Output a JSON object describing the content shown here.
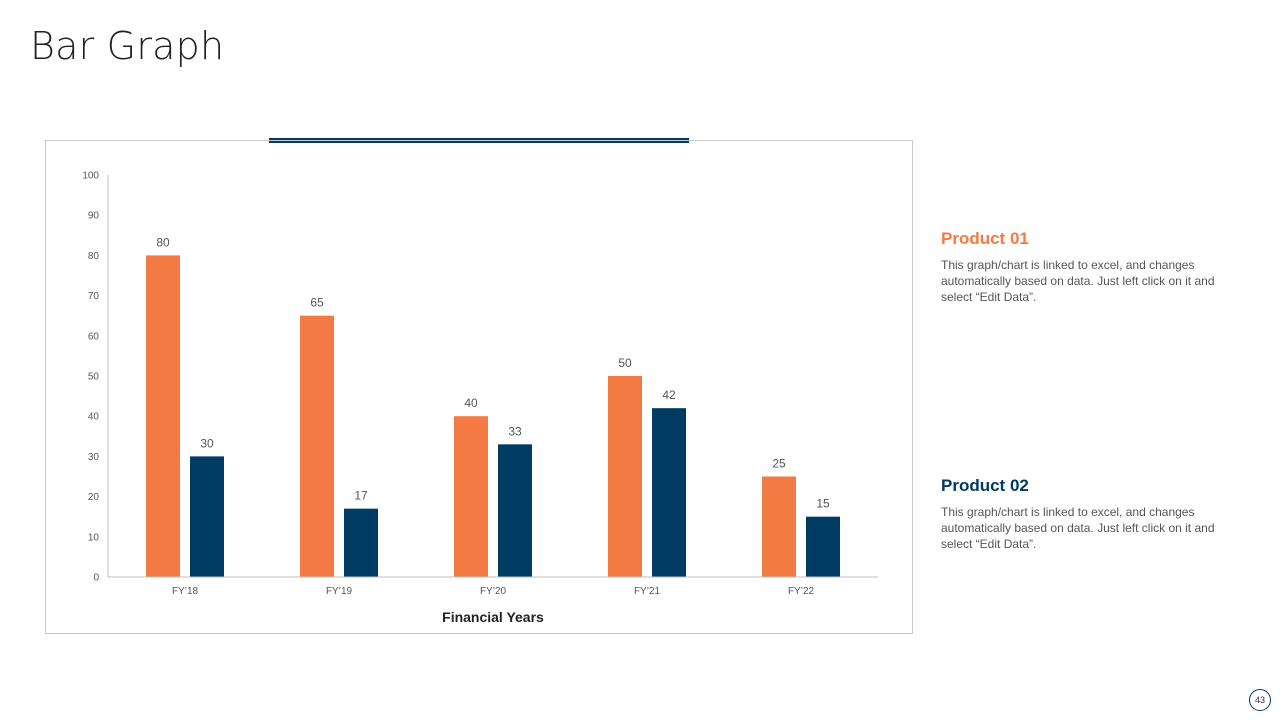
{
  "page": {
    "title": "Bar Graph",
    "page_number": "43"
  },
  "colors": {
    "product_01": "#f47a43",
    "product_02": "#003b64",
    "accent": "#003b64"
  },
  "legend": [
    {
      "title": "Product 01",
      "text": "This graph/chart is linked to excel, and changes automatically based on data. Just left click on it and select “Edit Data”."
    },
    {
      "title": "Product 02",
      "text": "This graph/chart is linked to excel, and changes automatically based on data. Just left click on it and select “Edit Data”."
    }
  ],
  "chart_data": {
    "type": "bar",
    "title": "",
    "xlabel": "Financial Years",
    "ylabel": "",
    "ylim": [
      0,
      100
    ],
    "yticks": [
      0,
      10,
      20,
      30,
      40,
      50,
      60,
      70,
      80,
      90,
      100
    ],
    "grid": false,
    "categories": [
      "FY’18",
      "FY’19",
      "FY’20",
      "FY’21",
      "FY’22"
    ],
    "series": [
      {
        "name": "Product 01",
        "values": [
          80,
          65,
          40,
          50,
          25
        ]
      },
      {
        "name": "Product 02",
        "values": [
          30,
          17,
          33,
          42,
          15
        ]
      }
    ]
  }
}
